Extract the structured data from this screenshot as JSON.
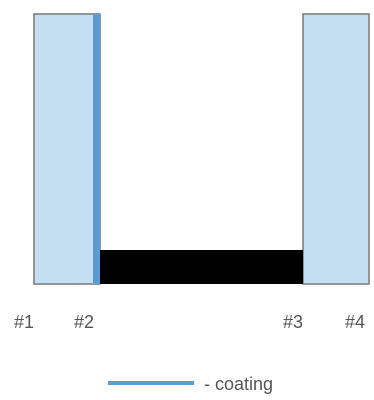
{
  "colors": {
    "glass_fill": "#c5dff2",
    "glass_stroke": "#7f7f7f",
    "coating": "#5b9bd5",
    "spacer": "#000000",
    "label_text": "#555555"
  },
  "surface_labels": [
    "#1",
    "#2",
    "#3",
    "#4"
  ],
  "legend": {
    "label": "- coating"
  }
}
